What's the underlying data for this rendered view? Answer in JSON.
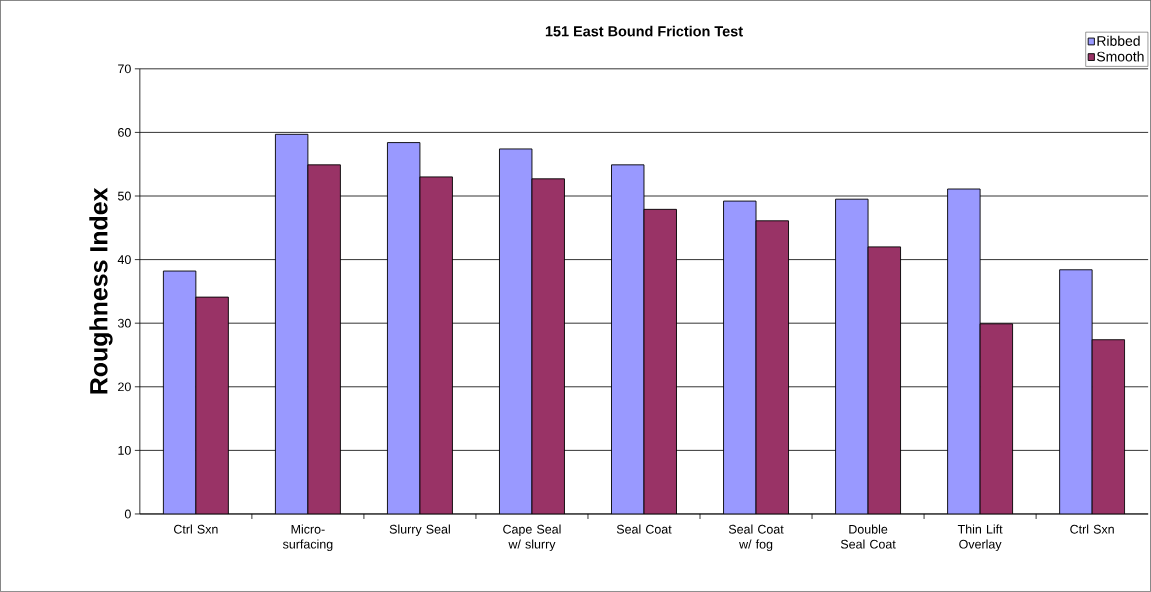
{
  "chart_data": {
    "type": "bar",
    "title": "151 East Bound Friction Test",
    "ylabel": "Roughness Index",
    "categories": [
      "Ctrl Sxn",
      "Micro-surfacing",
      "Slurry Seal",
      "Cape Seal w/ slurry",
      "Seal Coat",
      "Seal Coat w/ fog",
      "Double Seal Coat",
      "Thin Lift Overlay",
      "Ctrl Sxn"
    ],
    "series": [
      {
        "name": "Ribbed",
        "color": "#9999ff",
        "values": [
          38.2,
          59.7,
          58.4,
          57.4,
          54.9,
          49.2,
          49.5,
          51.1,
          38.4
        ]
      },
      {
        "name": "Smooth",
        "color": "#993366",
        "values": [
          34.1,
          54.9,
          53.0,
          52.7,
          47.9,
          46.1,
          42.0,
          29.9,
          27.4
        ]
      }
    ],
    "ylim": [
      0,
      70
    ],
    "yticks": [
      0,
      10,
      20,
      30,
      40,
      50,
      60,
      70
    ],
    "grid": "y",
    "legend": "top right"
  }
}
